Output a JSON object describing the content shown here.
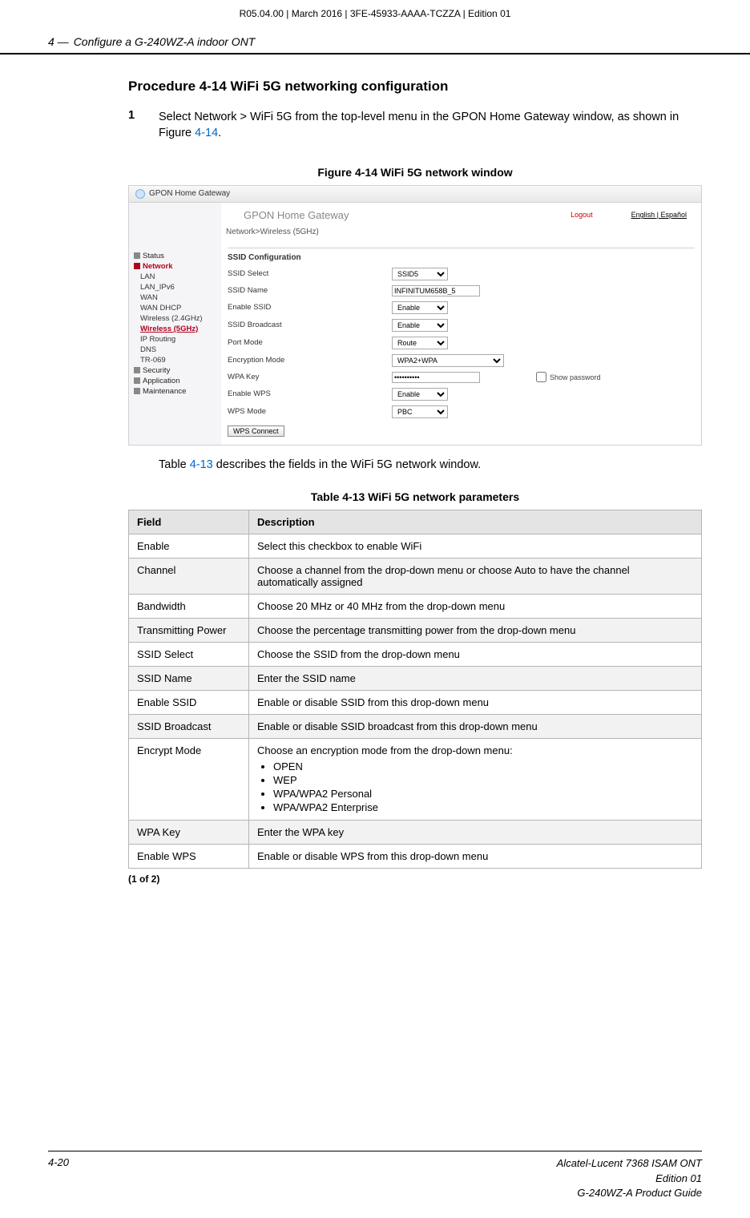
{
  "top_header": "R05.04.00 | March 2016 | 3FE-45933-AAAA-TCZZA | Edition 01",
  "section": {
    "num": "4 —",
    "title": "Configure a G-240WZ-A indoor ONT"
  },
  "procedure_title": "Procedure 4-14  WiFi 5G networking configuration",
  "step1": {
    "num": "1",
    "text_a": "Select Network > WiFi 5G from the top-level menu in the GPON Home Gateway window, as shown in Figure ",
    "link": "4-14",
    "text_b": "."
  },
  "figure_caption": "Figure 4-14  WiFi 5G network window",
  "screenshot": {
    "browser_tab": "GPON Home Gateway",
    "app_title": "GPON Home Gateway",
    "logout": "Logout",
    "lang_en": "English",
    "lang_sep": " | ",
    "lang_es": "Español",
    "breadcrumb": "Network>Wireless (5GHz)",
    "sidebar": {
      "status": "Status",
      "network": "Network",
      "items": [
        "LAN",
        "LAN_IPv6",
        "WAN",
        "WAN DHCP",
        "Wireless (2.4GHz)",
        "Wireless (5GHz)",
        "IP Routing",
        "DNS",
        "TR-069"
      ],
      "security": "Security",
      "application": "Application",
      "maintenance": "Maintenance"
    },
    "form": {
      "section": "SSID Configuration",
      "rows": {
        "ssid_select": {
          "label": "SSID Select",
          "value": "SSID5"
        },
        "ssid_name": {
          "label": "SSID Name",
          "value": "INFINITUM658B_5"
        },
        "enable_ssid": {
          "label": "Enable SSID",
          "value": "Enable"
        },
        "ssid_broadcast": {
          "label": "SSID Broadcast",
          "value": "Enable"
        },
        "port_mode": {
          "label": "Port Mode",
          "value": "Route"
        },
        "encryption": {
          "label": "Encryption Mode",
          "value": "WPA2+WPA"
        },
        "wpa_key": {
          "label": "WPA Key",
          "value": "••••••••••",
          "showpw": "Show password"
        },
        "enable_wps": {
          "label": "Enable WPS",
          "value": "Enable"
        },
        "wps_mode": {
          "label": "WPS Mode",
          "value": "PBC"
        }
      },
      "wps_button": "WPS Connect"
    }
  },
  "body_after_figure": {
    "a": "Table ",
    "link": "4-13",
    "b": " describes the fields in the WiFi 5G network window."
  },
  "table_caption": "Table 4-13 WiFi 5G network parameters",
  "table": {
    "headers": [
      "Field",
      "Description"
    ],
    "rows": [
      {
        "f": "Enable",
        "d": "Select this checkbox to enable WiFi",
        "shade": false
      },
      {
        "f": "Channel",
        "d": "Choose a channel from the drop-down menu or choose Auto to have the channel automatically assigned",
        "shade": true
      },
      {
        "f": "Bandwidth",
        "d": "Choose 20 MHz or 40 MHz from the drop-down menu",
        "shade": false
      },
      {
        "f": "Transmitting Power",
        "d": "Choose the percentage transmitting power from the drop-down menu",
        "shade": true
      },
      {
        "f": "SSID Select",
        "d": "Choose the SSID from the drop-down menu",
        "shade": false
      },
      {
        "f": "SSID Name",
        "d": "Enter the SSID name",
        "shade": true
      },
      {
        "f": "Enable SSID",
        "d": "Enable or disable SSID from this drop-down menu",
        "shade": false
      },
      {
        "f": "SSID Broadcast",
        "d": "Enable or disable SSID broadcast from this drop-down menu",
        "shade": true
      },
      {
        "f": "Encrypt Mode",
        "d_intro": "Choose an encryption mode from the drop-down menu:",
        "list": [
          "OPEN",
          "WEP",
          "WPA/WPA2 Personal",
          "WPA/WPA2 Enterprise"
        ],
        "shade": false
      },
      {
        "f": "WPA Key",
        "d": "Enter the WPA key",
        "shade": true
      },
      {
        "f": "Enable WPS",
        "d": "Enable or disable WPS from this drop-down menu",
        "shade": false
      }
    ],
    "page_note": "(1 of 2)"
  },
  "footer": {
    "left": "4-20",
    "right1": "Alcatel-Lucent 7368 ISAM ONT",
    "right2": "Edition 01",
    "right3": "G-240WZ-A Product Guide"
  }
}
